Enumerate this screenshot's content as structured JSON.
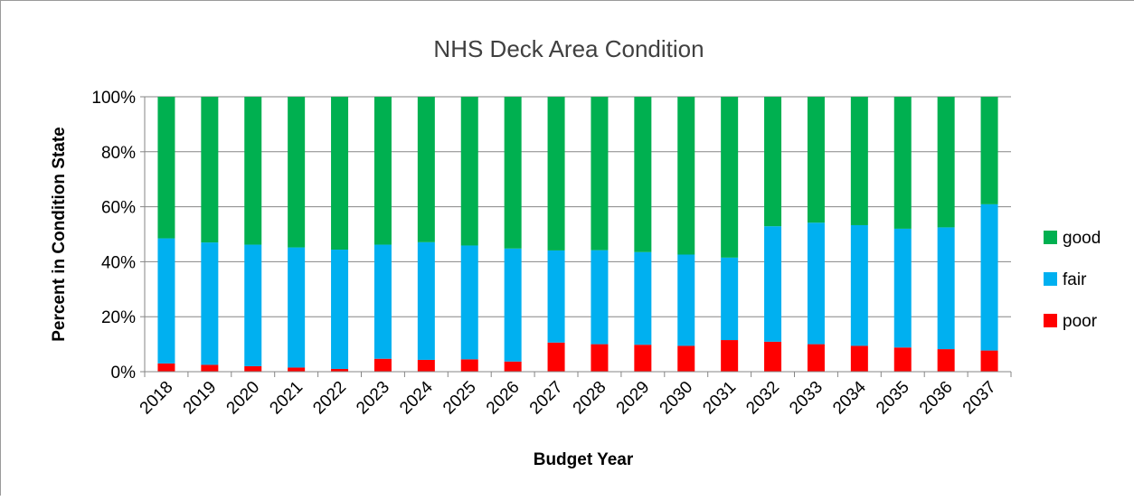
{
  "chart_data": {
    "type": "bar",
    "stacked": true,
    "percent_stacked": true,
    "title": "NHS Deck Area Condition",
    "xlabel": "Budget Year",
    "ylabel": "Percent in Condition State",
    "ylim": [
      0,
      100
    ],
    "yticks": [
      "0%",
      "20%",
      "40%",
      "60%",
      "80%",
      "100%"
    ],
    "grid": true,
    "legend_position": "right",
    "categories": [
      "2018",
      "2019",
      "2020",
      "2021",
      "2022",
      "2023",
      "2024",
      "2025",
      "2026",
      "2027",
      "2028",
      "2029",
      "2030",
      "2031",
      "2032",
      "2033",
      "2034",
      "2035",
      "2036",
      "2037"
    ],
    "series": [
      {
        "name": "poor",
        "color": "#ff0000",
        "values": [
          3,
          2.5,
          2,
          1.5,
          1,
          4.7,
          4.3,
          4.5,
          3.7,
          10.6,
          10,
          9.8,
          9.4,
          11.5,
          10.9,
          10,
          9.4,
          8.8,
          8.2,
          7.7
        ]
      },
      {
        "name": "fair",
        "color": "#00b0f0",
        "values": [
          45.5,
          44.5,
          44.2,
          43.7,
          43.4,
          41.5,
          42.8,
          41.4,
          41.1,
          33.5,
          34.2,
          33.7,
          33.2,
          30,
          42,
          44.2,
          43.9,
          43.2,
          44.3,
          53.2
        ]
      },
      {
        "name": "good",
        "color": "#00b050",
        "values": [
          51.5,
          53,
          53.8,
          54.8,
          55.6,
          53.8,
          52.9,
          54.1,
          55.2,
          55.9,
          55.8,
          56.5,
          57.4,
          58.5,
          47.1,
          45.8,
          46.7,
          48,
          47.5,
          39.1
        ]
      }
    ],
    "legend_order": [
      "good",
      "fair",
      "poor"
    ]
  }
}
